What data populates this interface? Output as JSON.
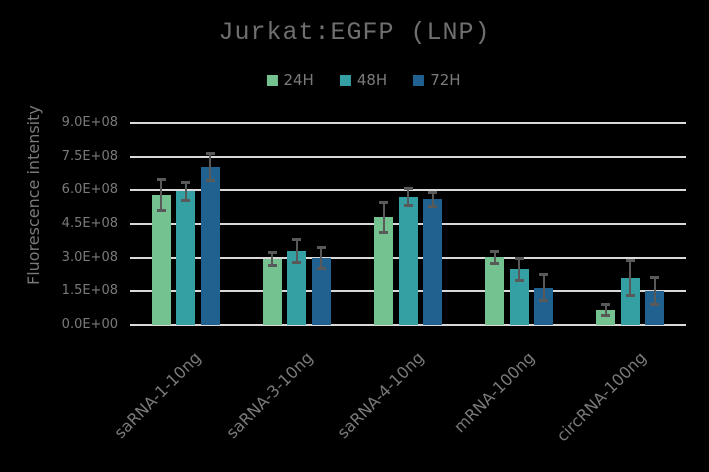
{
  "chart": {
    "title": "Jurkat:EGFP (LNP)",
    "ylabel": "Fluorescence intensity"
  },
  "chart_data": {
    "type": "bar",
    "title": "Jurkat:EGFP (LNP)",
    "xlabel": "",
    "ylabel": "Fluorescence intensity",
    "categories": [
      "saRNA-1-10ng",
      "saRNA-3-10ng",
      "saRNA-4-10ng",
      "mRNA-100ng",
      "circRNA-100ng"
    ],
    "series": [
      {
        "name": "24H",
        "color": "#74C28F",
        "values": [
          578000000.0,
          293000000.0,
          480000000.0,
          302000000.0,
          67000000.0
        ],
        "errors": [
          70000000.0,
          30000000.0,
          68000000.0,
          27000000.0,
          25000000.0
        ]
      },
      {
        "name": "48H",
        "color": "#34A0A3",
        "values": [
          595000000.0,
          330000000.0,
          570000000.0,
          248000000.0,
          210000000.0
        ],
        "errors": [
          42000000.0,
          50000000.0,
          38000000.0,
          48000000.0,
          78000000.0
        ]
      },
      {
        "name": "72H",
        "color": "#20618F",
        "values": [
          703000000.0,
          300000000.0,
          560000000.0,
          165000000.0,
          150000000.0
        ],
        "errors": [
          60000000.0,
          47000000.0,
          30000000.0,
          58000000.0,
          60000000.0
        ]
      }
    ],
    "ylim": [
      0,
      900000000.0
    ],
    "ytick_step": 150000000.0,
    "ytick_labels": [
      "0.0E+00",
      "1.5E+08",
      "3.0E+08",
      "4.5E+08",
      "6.0E+08",
      "7.5E+08",
      "9.0E+08"
    ],
    "grid": true,
    "legend_position": "top",
    "error_bars": true
  },
  "style": {
    "background": "#000000",
    "title_color": "#6F6F6F",
    "text_color": "#7A7A7A",
    "gridline_color": "#D9D9D9",
    "error_bar_color": "#595959"
  }
}
